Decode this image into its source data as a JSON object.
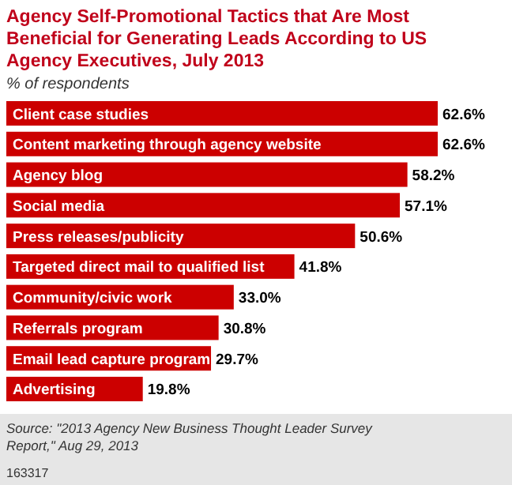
{
  "chart_data": {
    "type": "bar",
    "orientation": "horizontal",
    "title": "Agency Self-Promotional Tactics that Are Most Beneficial for Generating Leads According to US Agency Executives, July 2013",
    "subtitle": "% of respondents",
    "categories": [
      "Client case studies",
      "Content marketing through agency website",
      "Agency blog",
      "Social media",
      "Press releases/publicity",
      "Targeted direct mail to qualified list",
      "Community/civic work",
      "Referrals program",
      "Email lead capture program",
      "Advertising"
    ],
    "values": [
      62.6,
      62.6,
      58.2,
      57.1,
      50.6,
      41.8,
      33.0,
      30.8,
      29.7,
      19.8
    ],
    "value_labels": [
      "62.6%",
      "62.6%",
      "58.2%",
      "57.1%",
      "50.6%",
      "41.8%",
      "33.0%",
      "30.8%",
      "29.7%",
      "19.8%"
    ],
    "color": "#cc0000",
    "annotations": [
      "Source: \"2013 Agency New Business Thought Leader Survey Report,\" Aug 29, 2013",
      "163317"
    ]
  }
}
